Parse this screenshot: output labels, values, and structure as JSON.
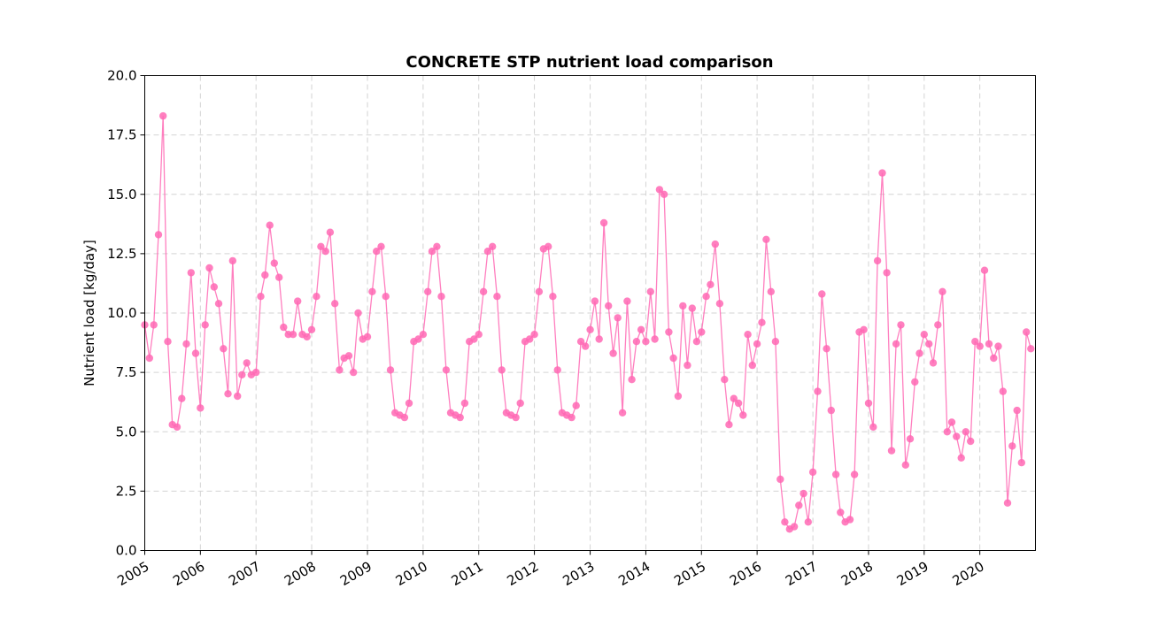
{
  "colors": {
    "series": "#ff69b4",
    "grid": "#d3d3d3",
    "axis": "#000000"
  },
  "chart_data": {
    "type": "line",
    "title": "CONCRETE STP nutrient load comparison",
    "xlabel": "",
    "ylabel": "Nutrient load [kg/day]",
    "ylim": [
      0,
      20
    ],
    "xlim": [
      "2005-01-01",
      "2020-12-31"
    ],
    "yticks": [
      0.0,
      2.5,
      5.0,
      7.5,
      10.0,
      12.5,
      15.0,
      17.5,
      20.0
    ],
    "ytick_labels": [
      "0.0",
      "2.5",
      "5.0",
      "7.5",
      "10.0",
      "12.5",
      "15.0",
      "17.5",
      "20.0"
    ],
    "xticks": [
      "2005-01-01",
      "2006-01-01",
      "2007-01-01",
      "2008-01-01",
      "2009-01-01",
      "2010-01-01",
      "2011-01-01",
      "2012-01-01",
      "2013-01-01",
      "2014-01-01",
      "2015-01-01",
      "2016-01-01",
      "2017-01-01",
      "2018-01-01",
      "2019-01-01",
      "2020-01-01"
    ],
    "xtick_labels": [
      "2005",
      "2006",
      "2007",
      "2008",
      "2009",
      "2010",
      "2011",
      "2012",
      "2013",
      "2014",
      "2015",
      "2016",
      "2017",
      "2018",
      "2019",
      "2020"
    ],
    "grid": true,
    "series": [
      {
        "name": "",
        "x": [
          "2005-01-01",
          "2005-02-01",
          "2005-03-01",
          "2005-04-01",
          "2005-05-01",
          "2005-06-01",
          "2005-07-01",
          "2005-08-01",
          "2005-09-01",
          "2005-10-01",
          "2005-11-01",
          "2005-12-01",
          "2006-01-01",
          "2006-02-01",
          "2006-03-01",
          "2006-04-01",
          "2006-05-01",
          "2006-06-01",
          "2006-07-01",
          "2006-08-01",
          "2006-09-01",
          "2006-10-01",
          "2006-11-01",
          "2006-12-01",
          "2007-01-01",
          "2007-02-01",
          "2007-03-01",
          "2007-04-01",
          "2007-05-01",
          "2007-06-01",
          "2007-07-01",
          "2007-08-01",
          "2007-09-01",
          "2007-10-01",
          "2007-11-01",
          "2007-12-01",
          "2008-01-01",
          "2008-02-01",
          "2008-03-01",
          "2008-04-01",
          "2008-05-01",
          "2008-06-01",
          "2008-07-01",
          "2008-08-01",
          "2008-09-01",
          "2008-10-01",
          "2008-11-01",
          "2008-12-01",
          "2009-01-01",
          "2009-02-01",
          "2009-03-01",
          "2009-04-01",
          "2009-05-01",
          "2009-06-01",
          "2009-07-01",
          "2009-08-01",
          "2009-09-01",
          "2009-10-01",
          "2009-11-01",
          "2009-12-01",
          "2010-01-01",
          "2010-02-01",
          "2010-03-01",
          "2010-04-01",
          "2010-05-01",
          "2010-06-01",
          "2010-07-01",
          "2010-08-01",
          "2010-09-01",
          "2010-10-01",
          "2010-11-01",
          "2010-12-01",
          "2011-01-01",
          "2011-02-01",
          "2011-03-01",
          "2011-04-01",
          "2011-05-01",
          "2011-06-01",
          "2011-07-01",
          "2011-08-01",
          "2011-09-01",
          "2011-10-01",
          "2011-11-01",
          "2011-12-01",
          "2012-01-01",
          "2012-02-01",
          "2012-03-01",
          "2012-04-01",
          "2012-05-01",
          "2012-06-01",
          "2012-07-01",
          "2012-08-01",
          "2012-09-01",
          "2012-10-01",
          "2012-11-01",
          "2012-12-01",
          "2013-01-01",
          "2013-02-01",
          "2013-03-01",
          "2013-04-01",
          "2013-05-01",
          "2013-06-01",
          "2013-07-01",
          "2013-08-01",
          "2013-09-01",
          "2013-10-01",
          "2013-11-01",
          "2013-12-01",
          "2014-01-01",
          "2014-02-01",
          "2014-03-01",
          "2014-04-01",
          "2014-05-01",
          "2014-06-01",
          "2014-07-01",
          "2014-08-01",
          "2014-09-01",
          "2014-10-01",
          "2014-11-01",
          "2014-12-01",
          "2015-01-01",
          "2015-02-01",
          "2015-03-01",
          "2015-04-01",
          "2015-05-01",
          "2015-06-01",
          "2015-07-01",
          "2015-08-01",
          "2015-09-01",
          "2015-10-01",
          "2015-11-01",
          "2015-12-01",
          "2016-01-01",
          "2016-02-01",
          "2016-03-01",
          "2016-04-01",
          "2016-05-01",
          "2016-06-01",
          "2016-07-01",
          "2016-08-01",
          "2016-09-01",
          "2016-10-01",
          "2016-11-01",
          "2016-12-01",
          "2017-01-01",
          "2017-02-01",
          "2017-03-01",
          "2017-04-01",
          "2017-05-01",
          "2017-06-01",
          "2017-07-01",
          "2017-08-01",
          "2017-09-01",
          "2017-10-01",
          "2017-11-01",
          "2017-12-01",
          "2018-01-01",
          "2018-02-01",
          "2018-03-01",
          "2018-04-01",
          "2018-05-01",
          "2018-06-01",
          "2018-07-01",
          "2018-08-01",
          "2018-09-01",
          "2018-10-01",
          "2018-11-01",
          "2018-12-01",
          "2019-01-01",
          "2019-02-01",
          "2019-03-01",
          "2019-04-01",
          "2019-05-01",
          "2019-06-01",
          "2019-07-01",
          "2019-08-01",
          "2019-09-01",
          "2019-10-01",
          "2019-11-01",
          "2019-12-01",
          "2020-01-01",
          "2020-02-01",
          "2020-03-01",
          "2020-04-01",
          "2020-05-01",
          "2020-06-01",
          "2020-07-01",
          "2020-08-01",
          "2020-09-01",
          "2020-10-01",
          "2020-11-01",
          "2020-12-01"
        ],
        "y": [
          9.5,
          8.1,
          9.5,
          13.3,
          18.3,
          8.8,
          5.3,
          5.2,
          6.4,
          8.7,
          11.7,
          8.3,
          6.0,
          9.5,
          11.9,
          11.1,
          10.4,
          8.5,
          6.6,
          12.2,
          6.5,
          7.4,
          7.9,
          7.4,
          7.5,
          10.7,
          11.6,
          13.7,
          12.1,
          11.5,
          9.4,
          9.1,
          9.1,
          10.5,
          9.1,
          9.0,
          9.3,
          10.7,
          12.8,
          12.6,
          13.4,
          10.4,
          7.6,
          8.1,
          8.2,
          7.5,
          10.0,
          8.9,
          9.0,
          10.9,
          12.6,
          12.8,
          10.7,
          7.6,
          5.8,
          5.7,
          5.6,
          6.2,
          8.8,
          8.9,
          9.1,
          10.9,
          12.6,
          12.8,
          10.7,
          7.6,
          5.8,
          5.7,
          5.6,
          6.2,
          8.8,
          8.9,
          9.1,
          10.9,
          12.6,
          12.8,
          10.7,
          7.6,
          5.8,
          5.7,
          5.6,
          6.2,
          8.8,
          8.9,
          9.1,
          10.9,
          12.7,
          12.8,
          10.7,
          7.6,
          5.8,
          5.7,
          5.6,
          6.1,
          8.8,
          8.6,
          9.3,
          10.5,
          8.9,
          13.8,
          10.3,
          8.3,
          9.8,
          5.8,
          10.5,
          7.2,
          8.8,
          9.3,
          8.8,
          10.9,
          8.9,
          15.2,
          15.0,
          9.2,
          8.1,
          6.5,
          10.3,
          7.8,
          10.2,
          8.8,
          9.2,
          10.7,
          11.2,
          12.9,
          10.4,
          7.2,
          5.3,
          6.4,
          6.2,
          5.7,
          9.1,
          7.8,
          8.7,
          9.6,
          13.1,
          10.9,
          8.8,
          3.0,
          1.2,
          0.9,
          1.0,
          1.9,
          2.4,
          1.2,
          3.3,
          6.7,
          10.8,
          8.5,
          5.9,
          3.2,
          1.6,
          1.2,
          1.3,
          3.2,
          9.2,
          9.3,
          6.2,
          5.2,
          12.2,
          15.9,
          11.7,
          4.2,
          8.7,
          9.5,
          3.6,
          4.7,
          7.1,
          8.3,
          9.1,
          8.7,
          7.9,
          9.5,
          10.9,
          5.0,
          5.4,
          4.8,
          3.9,
          5.0,
          4.6,
          8.8,
          8.6,
          11.8,
          8.7,
          8.1,
          8.6,
          6.7,
          2.0,
          4.4,
          5.9,
          3.7,
          9.2,
          8.5
        ]
      }
    ]
  }
}
